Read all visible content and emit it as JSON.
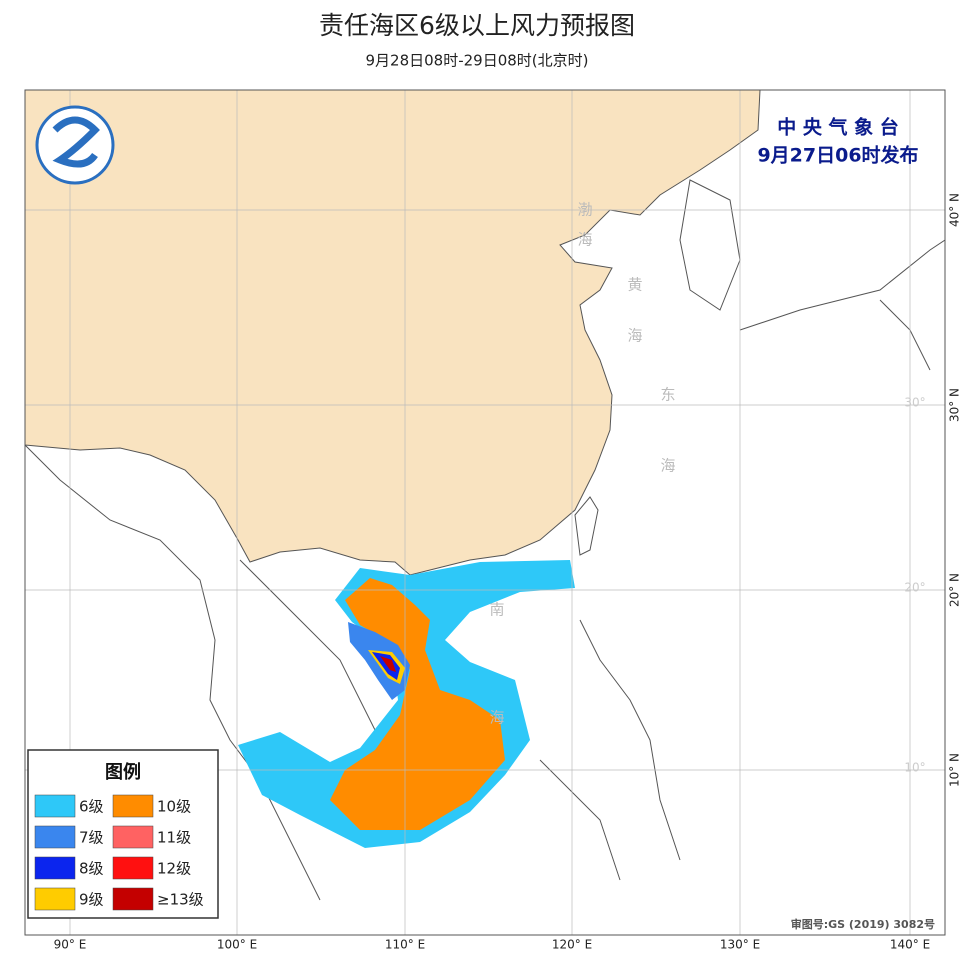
{
  "header": {
    "title": "责任海区6级以上风力预报图",
    "subtitle": "9月28日08时-29日08时(北京时)"
  },
  "issuer": {
    "name": "中 央 气 象 台",
    "date": "9月27日06时发布"
  },
  "footer": {
    "approval": "审图号:GS (2019) 3082号"
  },
  "axes": {
    "lon_labels": [
      "90° E",
      "100° E",
      "110° E",
      "120° E",
      "130° E",
      "140° E"
    ],
    "lat_labels": [
      "40° N",
      "30° N",
      "20° N",
      "10° N"
    ],
    "inner_lat_labels": [
      "30°",
      "20°",
      "10°"
    ]
  },
  "sea_labels": [
    [
      "渤",
      "海"
    ],
    [
      "黄",
      "海"
    ],
    [
      "东",
      "海"
    ],
    [
      "南",
      "海"
    ]
  ],
  "legend": {
    "title": "图例",
    "items": [
      {
        "label": "6级",
        "color": "#2ec8f8"
      },
      {
        "label": "10级",
        "color": "#ff8c00"
      },
      {
        "label": "7级",
        "color": "#3a86ee"
      },
      {
        "label": "11级",
        "color": "#ff6262"
      },
      {
        "label": "8级",
        "color": "#0b25ee"
      },
      {
        "label": "12级",
        "color": "#ff1010"
      },
      {
        "label": "9级",
        "color": "#ffcc00"
      },
      {
        "label": "≥13级",
        "color": "#c40000"
      }
    ]
  }
}
